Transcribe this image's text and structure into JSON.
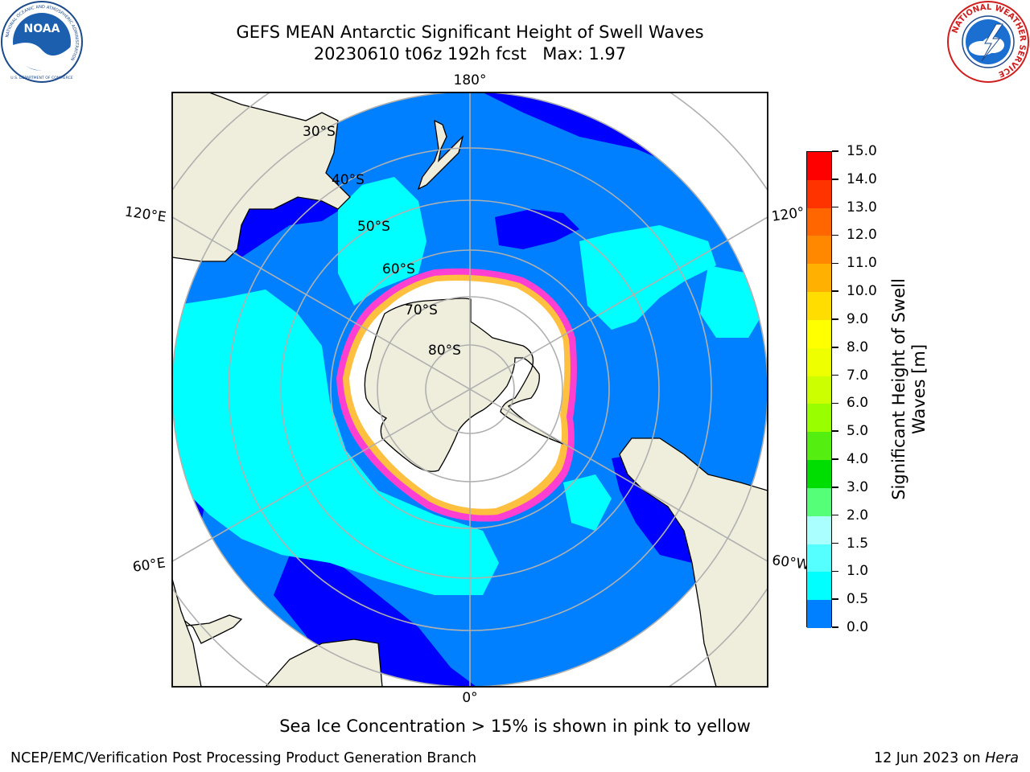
{
  "header": {
    "title_line1": "GEFS MEAN Antarctic Significant Height of Swell Waves",
    "title_line2": "20230610 t06z 192h fcst   Max: 1.97"
  },
  "logos": {
    "noaa": {
      "text": "NOAA",
      "ring_text": "NATIONAL OCEANIC AND ATMOSPHERIC ADMINISTRATION",
      "bottom_text": "U.S. DEPARTMENT OF COMMERCE"
    },
    "nws": {
      "ring_text": "NATIONAL WEATHER SERVICE"
    }
  },
  "map": {
    "projection": "south-polar-stereographic",
    "longitude_labels": [
      "180°",
      "120°E",
      "120°",
      "60°E",
      "60°W",
      "0°"
    ],
    "latitude_labels": [
      "30°S",
      "40°S",
      "50°S",
      "60°S",
      "70°S",
      "80°S"
    ],
    "colors": {
      "land": "#efeedc",
      "ocean_dark": "#0000ff",
      "ocean_mid": "#0080ff",
      "ocean_light": "#00ffff",
      "ice": "#ffffff",
      "ice_edge_pink": "#ff3fd2",
      "ice_edge_yellow": "#ffbf3f",
      "grid": "#b0b0b0"
    }
  },
  "colorbar": {
    "title": "Significant Height of Swell Waves [m]",
    "title_line1": "Significant Height of Swell",
    "title_line2": "Waves [m]",
    "ticks": [
      "15.0",
      "14.0",
      "13.0",
      "12.0",
      "11.0",
      "10.0",
      "9.0",
      "8.0",
      "7.0",
      "6.0",
      "5.0",
      "4.0",
      "3.0",
      "2.0",
      "1.5",
      "1.0",
      "0.5",
      "0.0"
    ],
    "segment_colors": [
      "#ff0000",
      "#ff3300",
      "#ff6600",
      "#ff8800",
      "#ffb000",
      "#ffdd00",
      "#ffff00",
      "#eeff00",
      "#ccff00",
      "#99ff00",
      "#55ee11",
      "#00dd00",
      "#55ff77",
      "#aaffff",
      "#55ffff",
      "#00ffff",
      "#0080ff",
      "#0000ff"
    ]
  },
  "footnote": "Sea Ice Concentration > 15% is shown in pink to yellow",
  "credits": {
    "left": "NCEP/EMC/Verification Post Processing Product Generation Branch",
    "right_prefix": "12 Jun 2023 on ",
    "right_machine": "Hera"
  }
}
